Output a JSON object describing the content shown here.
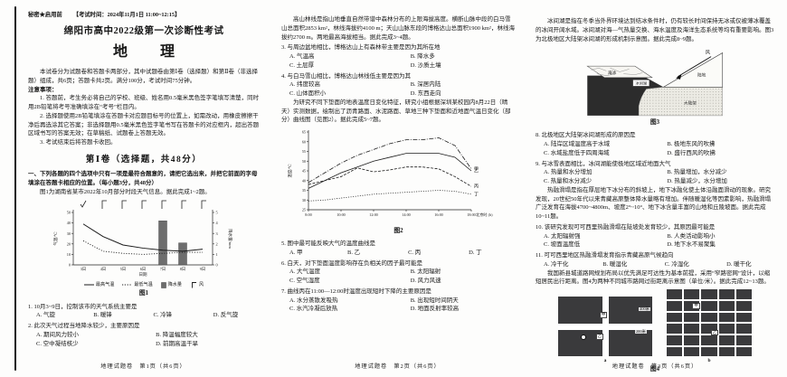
{
  "page1": {
    "security": "秘密★启用前",
    "exam_time": "【考试时间：2024年11月1日 11:00~12:15】",
    "title": "绵阳市高中2022级第一次诊断性考试",
    "subject": "地　理",
    "intro": "本试卷分为试题卷和答题卡两部分，其中试题卷由第Ⅰ卷（选择题）和第Ⅱ卷（非选择题）组成，共6页；答题卡共2页。满分100分，考试时间75分钟。",
    "notice_title": "注意事项：",
    "notice1": "1. 答题前，考生务必将自己的学校、班级、姓名用0.5毫米黑色签字笔填写清楚，同时用2B铅笔将考号准确填涂在“考号”栏目内。",
    "notice2": "2. 选择题使用2B铅笔填涂在答题卡对应题目标号的位置上，如需改动，用橡皮擦擦干净后再选涂其它答案；非选择题用0.5毫米黑色签字笔书写在答题卡的对应框内，超出答题区域书写的答案无效；在草稿纸、试题卷上答题无效。",
    "notice3": "3. 考试结束后将答题卡收回。",
    "part1_title": "第Ⅰ卷（选择题，共48分）",
    "part1_intro": "一、下列各题的四个选项中只有一项是最符合题意的，请把它选出来，并把它前面的字母填涂在答题卡相应的位置。（每小题3分，共48分）",
    "fig1_lead": "图1为湖南省某市2022年10月部分时段天气信息。据此完成1~2题。",
    "q1_stem": "1. 10月3~9日，控制该市的天气系统主要是",
    "q1_a": "A. 气旋",
    "q1_b": "B. 暖锋",
    "q1_c": "C. 冷锋",
    "q1_d": "D. 反气旋",
    "q2_stem": "2. 此次天气过程当地降水较少，主要原因是",
    "q2_a": "A. 期间风力较小",
    "q2_b": "B. 降温幅度较大",
    "q2_c": "C. 空中凝结核少",
    "q2_d": "D. 前期高温干旱",
    "footer": "地理试题卷　第1页（共6页）"
  },
  "page2": {
    "lead1": "高山林线是指山地垂直自然带谱中森林分布的上限海拔高度。横断山脉中段的白马雪山总面积2853 km²，林线海拔约4100 m；天山山脉东段的博格达山总面积1900 km²，林线海拔约2700 m。两地最高海拔相当。据此完成3~4题。",
    "q3_stem": "3. 与周边盆地相比，博格达山上有森林带主要是因为其所在地",
    "q3_a": "A. 气温高",
    "q3_b": "B. 降水多",
    "q3_c": "C. 土层厚",
    "q3_d": "D. 沙质土壤",
    "q4_stem": "4. 与白马雪山相比，博格达山林线低主要是因为其",
    "q4_a": "A. 纬度较高",
    "q4_b": "B. 深居内陆",
    "q4_c": "C. 山体面积小",
    "q4_d": "D. 东西走向",
    "lead2": "为研究不同下垫面的地表温度日变化特征，研究小组根据深圳某校园内8月22日（晴天）实测数据，绘制出了沥青路面、水泥路面、草地三种下垫面和近地面气温日变化（部分）曲线图（见图2）。据此完成5~7题。",
    "q5_stem": "5. 图中最可能反映大气的温度曲线是",
    "q5_a": "A. 甲",
    "q5_b": "B. 乙",
    "q5_c": "C. 丙",
    "q5_d": "D. 丁",
    "q6_stem": "6. 白天，对下垫面温度影响存在负相关的因子最可能是",
    "q6_a": "A. 大气温度",
    "q6_b": "B. 太阳辐射",
    "q6_c": "C. 空气湿度",
    "q6_d": "D. 风力风速",
    "q7_stem": "7. 曲线丙在11:00—12:00时温度出现短时下降的主要原因是",
    "q7_a": "A. 水分蒸散发吸热",
    "q7_b": "B. 出现短时间阴天",
    "q7_c": "C. 水汽冷凝后放热",
    "q7_d": "D. 地面反射率较高",
    "footer": "地理试题卷　第2页（共6页）"
  },
  "page3": {
    "lead1": "冰间湖是指在冬季当外界环境达到结冰条件时，仍有较长时间保持无冰或仅被薄冰覆盖的冰间开阔水域。冰间湖对海—气热量交换、海水温度及海洋生态系统等均有重要影响。图3为北极地区大陆架冰间湖的形成机制示意图。据此完成8~9题。",
    "q8_stem": "8. 北极地区大陆架冰间湖形成的原因是",
    "q8_a": "A. 陆岸区域温度高于水域",
    "q8_b": "B. 极地东风的吹拂",
    "q8_c": "C. 水域盐度低于四周海域",
    "q8_d": "D. 盛行西风的吹拂",
    "q9_stem": "9. 与冰雪表面相比，冰间湖能使极地区域近地面大气",
    "q9_a": "A. 热量和水分增加",
    "q9_b": "B. 热量增加，水分减少",
    "q9_c": "C. 热量和水分减少",
    "q9_d": "D. 热量减少，水分增加",
    "lead2": "热融滑塌是指在厚层地下冰分布的斜坡上，地下冰融化使土体沿融面滑动的现象。研究发现，20世纪50年代以来青藏高原整体降水量略有增加。伴随暖湿化等因素影响，热融滑塌广泛发育在海拔4700~4800m、坡度2°~10°、地下冰含量丰富的山地和丘陵坡面。据此完成10~11题。",
    "q10_stem": "10. 该研究发现可可西里热融滑塌在陡坡处发育较少，其原因最可能是",
    "q10_a": "A. 太阳辐射强",
    "q10_b": "B. 人类活动影响小",
    "q10_c": "C. 坡面温度低",
    "q10_d": "D. 地下水不易聚集",
    "q11_stem": "11. 可可西里地区热融滑塌发育指示青藏高原气候趋向",
    "q11_a": "A. 冷干化",
    "q11_b": "B. 暖湿化",
    "q11_c": "C. 冷湿化",
    "q11_d": "D. 暖干化",
    "lead3": "我国新县城道路网规划布局以优先满足可达性为基本前提，采用“窄路密网”设计，以缩短居民出行距离。图4为两种不同城市路网过街距离示意图（单位/米）。据此完成12~13题。",
    "footer": "地理试题卷　第3页（共6页）"
  },
  "chart_data": [
    {
      "id": "fig1",
      "type": "combo-line-bar",
      "title": "图1",
      "categories": [
        "3日",
        "4日",
        "5日",
        "6日",
        "7日",
        "8日",
        "9日"
      ],
      "series": [
        {
          "name": "最高气温",
          "type": "line",
          "style": "solid",
          "values": [
            39,
            27,
            19,
            16,
            14,
            13,
            15
          ]
        },
        {
          "name": "最低气温",
          "type": "line",
          "style": "dotted",
          "values": [
            23,
            13,
            11,
            10,
            11,
            12,
            12
          ]
        },
        {
          "name": "降水量",
          "type": "bar",
          "values": [
            0,
            0,
            0,
            0,
            4.2,
            2.1,
            0
          ]
        }
      ],
      "ylabel_left": "气温/℃",
      "ylim_left": [
        0,
        50
      ],
      "ylabel_right": "降水量/mm",
      "ylim_right": [
        0,
        5
      ],
      "xlabel": "日期",
      "legend": [
        "最高气温",
        "最低气温",
        "降水量",
        "风"
      ],
      "weather_symbols": [
        "check",
        "barb",
        "barb",
        "barb",
        "barb",
        "barb",
        "barb"
      ]
    },
    {
      "id": "fig2",
      "type": "line",
      "title": "图2",
      "x": [
        8,
        9,
        10,
        11,
        12,
        13,
        14,
        15,
        16,
        17,
        18
      ],
      "xticks": [
        "8:00",
        "10:00",
        "12:00",
        "14:00",
        "16:00",
        "18:00"
      ],
      "xlabel": "北京时 (h)",
      "ylabel": "温度/℃",
      "ylim": [
        25,
        65
      ],
      "series": [
        {
          "name": "甲",
          "style": "dashdot",
          "values": [
            39,
            44,
            49,
            53,
            56,
            59,
            61,
            61,
            62,
            58,
            46
          ]
        },
        {
          "name": "乙",
          "style": "solid",
          "values": [
            36,
            40,
            44,
            47,
            50,
            52,
            54,
            54,
            54,
            52,
            45
          ]
        },
        {
          "name": "丙",
          "style": "dashed",
          "values": [
            38,
            40,
            42,
            46.5,
            44.5,
            45.5,
            47,
            47,
            46,
            42,
            37
          ]
        },
        {
          "name": "丁",
          "style": "dotted",
          "values": [
            29.5,
            30,
            31,
            32,
            33,
            33.5,
            34,
            34.5,
            35,
            34.5,
            33
          ]
        }
      ]
    }
  ],
  "fig3": {
    "caption": "图3",
    "label_wind": "风",
    "label_sea_ice": "海冰",
    "label_polynya": "冰间湖",
    "label_land": "陆地",
    "label_shelf": "大陆架"
  },
  "fig4": {
    "caption": "图4",
    "label_a": "a",
    "label_b": "b",
    "pt1": "甲",
    "pt2": "乙",
    "dim1": "400米",
    "dim2": "200米"
  }
}
